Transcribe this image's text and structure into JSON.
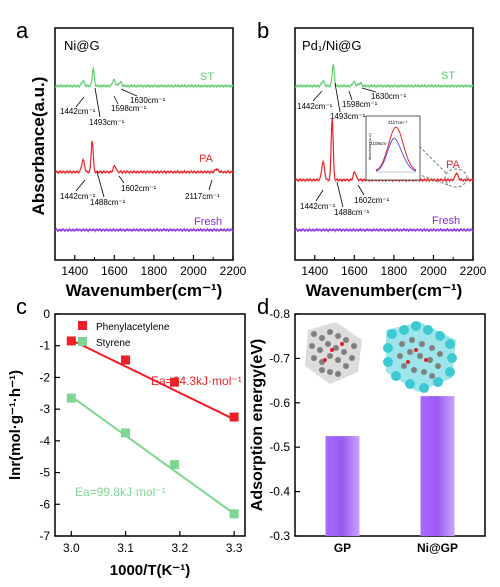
{
  "chart_data": [
    {
      "panel": "a",
      "type": "line",
      "title": "Ni@G",
      "xlabel": "Wavenumber(cm⁻¹)",
      "ylabel": "Absorbance(a.u.)",
      "xlim": [
        1300,
        2200
      ],
      "x_ticks": [
        "1400",
        "1600",
        "1800",
        "2000",
        "2200"
      ],
      "series": [
        {
          "name": "ST",
          "color": "#5fcf6f",
          "peaks": [
            1442,
            1493,
            1598,
            1630
          ]
        },
        {
          "name": "PA",
          "color": "#e8252a",
          "peaks": [
            1442,
            1488,
            1602,
            2117
          ]
        },
        {
          "name": "Fresh",
          "color": "#8a2be2",
          "peaks": []
        }
      ],
      "annotations": {
        "st": [
          "1442cm⁻¹",
          "1493cm⁻¹",
          "1598cm⁻¹",
          "1630cm⁻¹"
        ],
        "pa": [
          "1442cm⁻¹",
          "1488cm⁻¹",
          "1602cm⁻¹",
          "2117cm⁻¹"
        ]
      }
    },
    {
      "panel": "b",
      "type": "line",
      "title": "Pd₁/Ni@G",
      "xlabel": "Wavenumber(cm⁻¹)",
      "xlim": [
        1300,
        2200
      ],
      "x_ticks": [
        "1400",
        "1600",
        "1800",
        "2000",
        "2200"
      ],
      "series": [
        {
          "name": "ST",
          "color": "#5fcf6f",
          "peaks": [
            1442,
            1493,
            1598,
            1630
          ]
        },
        {
          "name": "PA",
          "color": "#e8252a",
          "peaks": [
            1442,
            1488,
            1602,
            2117
          ]
        },
        {
          "name": "Fresh",
          "color": "#8a2be2",
          "peaks": []
        }
      ],
      "annotations": {
        "st": [
          "1442cm⁻¹",
          "1493cm⁻¹",
          "1598cm⁻¹",
          "1630cm⁻¹"
        ],
        "pa": [
          "1442cm⁻¹",
          "1488cm⁻¹",
          "1602cm⁻¹"
        ]
      },
      "inset": {
        "labels": [
          "2117cm⁻¹",
          "2109cm⁻¹"
        ]
      }
    },
    {
      "panel": "c",
      "type": "scatter",
      "xlabel": "1000/T(K⁻¹)",
      "ylabel": "lnr(mol·g⁻¹·h⁻¹)",
      "xlim": [
        2.97,
        3.32
      ],
      "ylim": [
        -7,
        0
      ],
      "x_ticks": [
        "3.0",
        "3.1",
        "3.2",
        "3.3"
      ],
      "y_ticks": [
        "0",
        "-1",
        "-2",
        "-3",
        "-4",
        "-5",
        "-6",
        "-7"
      ],
      "series": [
        {
          "name": "Phenylacetylene",
          "color": "#ec2027",
          "x": [
            3.0,
            3.1,
            3.19,
            3.3
          ],
          "y": [
            -0.85,
            -1.45,
            -2.15,
            -3.25
          ],
          "fit": [
            -0.82,
            -3.32
          ],
          "annotation": "Ea=64.3kJ·mol⁻¹"
        },
        {
          "name": "Styrene",
          "color": "#7ed690",
          "x": [
            3.0,
            3.1,
            3.19,
            3.3
          ],
          "y": [
            -2.65,
            -3.75,
            -4.75,
            -6.3
          ],
          "fit": [
            -2.6,
            -6.3
          ],
          "annotation": "Ea=99.8kJ·mol⁻¹"
        }
      ]
    },
    {
      "panel": "d",
      "type": "bar",
      "categories": [
        "GP",
        "Ni@GP"
      ],
      "values": [
        -0.525,
        -0.615
      ],
      "ylabel": "Adsorption energy(eV)",
      "ylim": [
        -0.8,
        -0.3
      ],
      "y_ticks": [
        "-0.8",
        "-0.7",
        "-0.6",
        "-0.5",
        "-0.4",
        "-0.3"
      ],
      "bar_color": "#9b59f0"
    }
  ]
}
